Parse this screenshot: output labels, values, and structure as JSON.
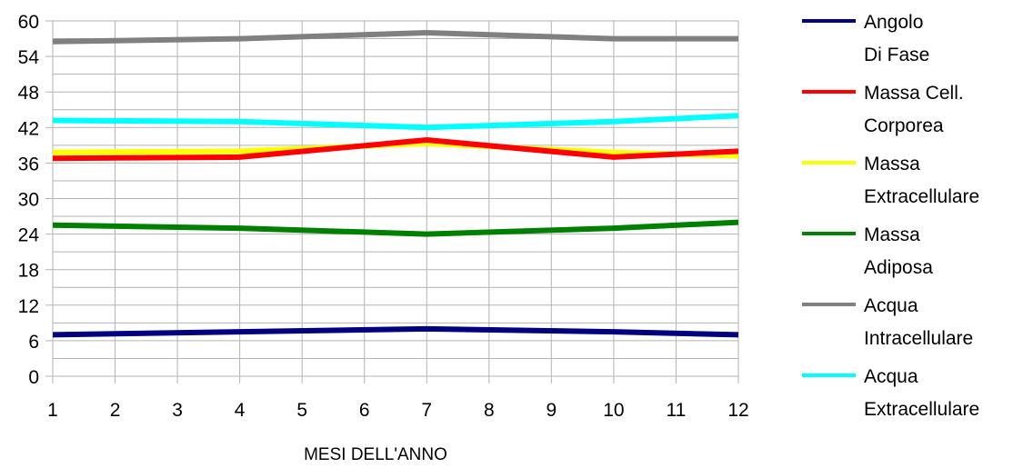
{
  "chart_data": {
    "type": "line",
    "x": [
      1,
      2,
      3,
      4,
      5,
      6,
      7,
      8,
      9,
      10,
      11,
      12
    ],
    "xlabel": "MESI DELL'ANNO",
    "ylabel": "",
    "xlim": [
      1,
      12
    ],
    "ylim": [
      0,
      60
    ],
    "x_ticks": [
      1,
      2,
      3,
      4,
      5,
      6,
      7,
      8,
      9,
      10,
      11,
      12
    ],
    "y_ticks": [
      0,
      6,
      12,
      18,
      24,
      30,
      36,
      42,
      48,
      54,
      60
    ],
    "grid": true,
    "legend_position": "right",
    "series": [
      {
        "name": "Massa Extracellulare",
        "label_lines": [
          "Massa",
          "Extracellulare"
        ],
        "color": "#ffff00",
        "points": [
          [
            1,
            37.8
          ],
          [
            4,
            38.0
          ],
          [
            7,
            39.3
          ],
          [
            10,
            37.8
          ],
          [
            12,
            37.2
          ]
        ]
      },
      {
        "name": "Massa Cell. Corporea",
        "label_lines": [
          "Massa Cell.",
          "Corporea"
        ],
        "color": "#ff0000",
        "points": [
          [
            1,
            36.8
          ],
          [
            4,
            37.0
          ],
          [
            7,
            39.9
          ],
          [
            10,
            37.0
          ],
          [
            12,
            38.0
          ]
        ]
      },
      {
        "name": "Angolo Di Fase",
        "label_lines": [
          "Angolo",
          "Di Fase"
        ],
        "color": "#000080",
        "points": [
          [
            1,
            7.0
          ],
          [
            4,
            7.5
          ],
          [
            7,
            8.0
          ],
          [
            10,
            7.5
          ],
          [
            12,
            7.0
          ]
        ]
      },
      {
        "name": "Massa Adiposa",
        "label_lines": [
          "Massa",
          "Adiposa"
        ],
        "color": "#008000",
        "points": [
          [
            1,
            25.5
          ],
          [
            4,
            25.0
          ],
          [
            7,
            24.0
          ],
          [
            10,
            25.0
          ],
          [
            12,
            26.0
          ]
        ]
      },
      {
        "name": "Acqua Intracellulare",
        "label_lines": [
          "Acqua",
          "Intracellulare"
        ],
        "color": "#808080",
        "points": [
          [
            1,
            56.5
          ],
          [
            4,
            57.0
          ],
          [
            7,
            58.0
          ],
          [
            10,
            57.0
          ],
          [
            12,
            57.0
          ]
        ]
      },
      {
        "name": "Acqua Extracellulare",
        "label_lines": [
          "Acqua",
          "Extracellulare"
        ],
        "color": "#00ffff",
        "points": [
          [
            1,
            43.2
          ],
          [
            4,
            43.0
          ],
          [
            7,
            42.0
          ],
          [
            10,
            43.0
          ],
          [
            12,
            44.0
          ]
        ]
      }
    ],
    "legend_order": [
      2,
      1,
      0,
      3,
      4,
      5
    ]
  }
}
